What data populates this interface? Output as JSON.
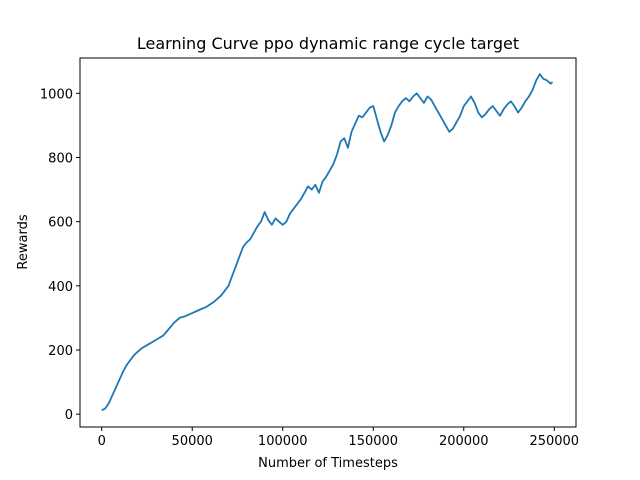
{
  "chart_data": {
    "type": "line",
    "title": "Learning Curve ppo dynamic range cycle target",
    "xlabel": "Number of Timesteps",
    "ylabel": "Rewards",
    "xlim": [
      -12000,
      262000
    ],
    "ylim": [
      -40,
      1110
    ],
    "xticks": [
      0,
      50000,
      100000,
      150000,
      200000,
      250000
    ],
    "xtick_labels": [
      "0",
      "50000",
      "100000",
      "150000",
      "200000",
      "250000"
    ],
    "yticks": [
      0,
      200,
      400,
      600,
      800,
      1000
    ],
    "ytick_labels": [
      "0",
      "200",
      "400",
      "600",
      "800",
      "1000"
    ],
    "grid": false,
    "line_color": "#1f77b4",
    "series": [
      {
        "x": [
          0,
          2000,
          4000,
          6000,
          8000,
          10000,
          12000,
          14000,
          16000,
          18000,
          20000,
          22000,
          25000,
          28000,
          31000,
          34000,
          37000,
          40000,
          43000,
          46000,
          50000,
          54000,
          58000,
          62000,
          66000,
          70000,
          72000,
          74000,
          76000,
          78000,
          80000,
          82000,
          84000,
          86000,
          88000,
          90000,
          92000,
          94000,
          96000,
          98000,
          100000,
          102000,
          104000,
          106000,
          108000,
          110000,
          112000,
          114000,
          116000,
          118000,
          120000,
          122000,
          124000,
          126000,
          128000,
          130000,
          132000,
          134000,
          136000,
          138000,
          140000,
          142000,
          144000,
          146000,
          148000,
          150000,
          152000,
          154000,
          156000,
          158000,
          160000,
          162000,
          164000,
          166000,
          168000,
          170000,
          172000,
          174000,
          176000,
          178000,
          180000,
          182000,
          184000,
          186000,
          188000,
          190000,
          192000,
          194000,
          196000,
          198000,
          200000,
          202000,
          204000,
          206000,
          208000,
          210000,
          212000,
          214000,
          216000,
          218000,
          220000,
          222000,
          224000,
          226000,
          228000,
          230000,
          232000,
          234000,
          236000,
          238000,
          240000,
          242000,
          244000,
          246000,
          248000,
          249000
        ],
        "y": [
          12,
          18,
          35,
          60,
          85,
          110,
          135,
          155,
          170,
          185,
          195,
          205,
          215,
          225,
          235,
          245,
          265,
          285,
          300,
          305,
          315,
          325,
          335,
          350,
          370,
          400,
          430,
          460,
          490,
          520,
          535,
          545,
          565,
          585,
          600,
          630,
          605,
          590,
          610,
          600,
          590,
          600,
          625,
          640,
          655,
          670,
          690,
          710,
          700,
          715,
          690,
          725,
          740,
          760,
          780,
          810,
          850,
          860,
          830,
          880,
          905,
          930,
          925,
          940,
          955,
          960,
          920,
          880,
          850,
          870,
          900,
          940,
          960,
          975,
          985,
          975,
          990,
          1000,
          985,
          970,
          990,
          980,
          960,
          940,
          920,
          900,
          880,
          890,
          910,
          930,
          960,
          975,
          990,
          970,
          940,
          925,
          935,
          950,
          960,
          945,
          930,
          950,
          965,
          975,
          960,
          940,
          955,
          975,
          990,
          1010,
          1040,
          1060,
          1045,
          1040,
          1030,
          1035
        ]
      }
    ]
  }
}
